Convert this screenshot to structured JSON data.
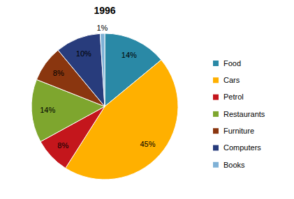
{
  "chart_data": {
    "type": "pie",
    "title": "1996",
    "categories": [
      "Food",
      "Cars",
      "Petrol",
      "Restaurants",
      "Furniture",
      "Computers",
      "Books"
    ],
    "values": [
      14,
      45,
      8,
      14,
      8,
      10,
      1
    ],
    "value_labels": [
      "14%",
      "45%",
      "8%",
      "14%",
      "8%",
      "10%",
      "1%"
    ],
    "colors": [
      "#2a89a6",
      "#ffb000",
      "#c4161c",
      "#7ea62e",
      "#8a360f",
      "#283c7c",
      "#7fb1d6"
    ],
    "data_labels": true,
    "legend": "right"
  }
}
